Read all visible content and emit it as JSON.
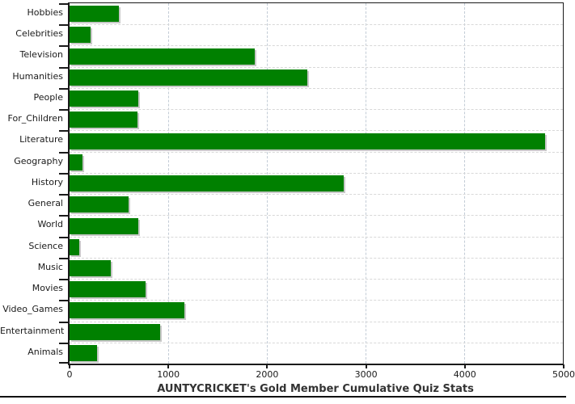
{
  "chart_data": {
    "type": "bar",
    "orientation": "horizontal",
    "title": "AUNTYCRICKET's Gold Member Cumulative Quiz Stats",
    "categories": [
      "Hobbies",
      "Celebrities",
      "Television",
      "Humanities",
      "People",
      "For_Children",
      "Literature",
      "Geography",
      "History",
      "General",
      "World",
      "Science",
      "Music",
      "Movies",
      "Video_Games",
      "Entertainment",
      "Animals"
    ],
    "values": [
      500,
      210,
      1875,
      2410,
      700,
      685,
      4820,
      135,
      2775,
      595,
      700,
      95,
      420,
      770,
      1160,
      915,
      275
    ],
    "xlabel": "",
    "ylabel": "",
    "xlim": [
      0,
      5000
    ],
    "x_ticks": [
      "0",
      "1000",
      "2000",
      "3000",
      "4000",
      "5000"
    ],
    "grid": {
      "vertical": true,
      "horizontal": true,
      "line_style": "dashed"
    },
    "legend_position": "none",
    "colors": {
      "bar": "#008000",
      "bar_shadow": "#c8c8c8",
      "axis": "#1a1a1a",
      "grid_vertical": "#c3ccd6",
      "grid_horizontal": "#d8d8d8",
      "tick_text": "#1a1a1a",
      "title_text": "#333333",
      "background": "#ffffff"
    }
  }
}
